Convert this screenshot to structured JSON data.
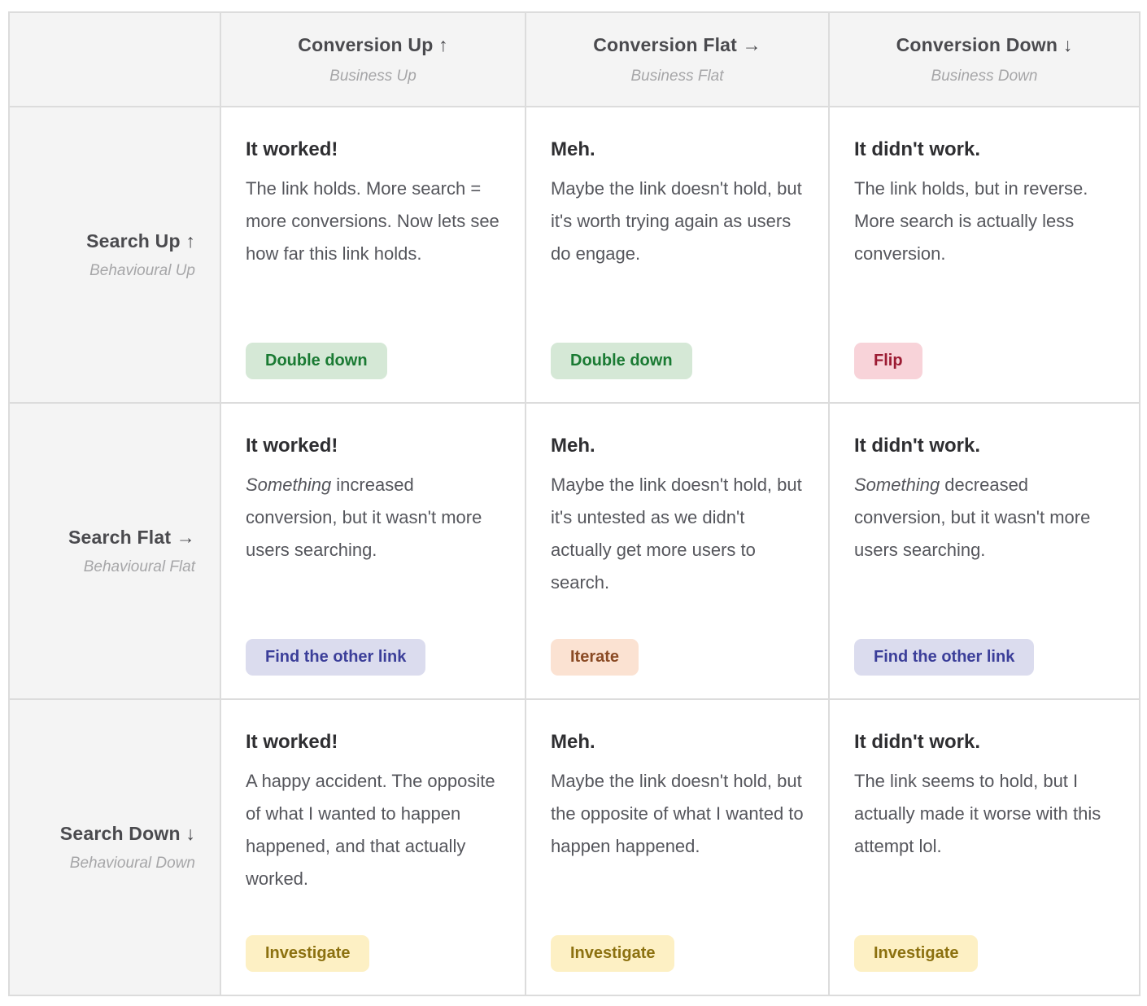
{
  "badge_colors": {
    "green": {
      "bg": "#d5e8d6",
      "text": "#1a7a33"
    },
    "red": {
      "bg": "#f8d3d9",
      "text": "#9c1b33"
    },
    "purple": {
      "bg": "#dbdcee",
      "text": "#3b3e99"
    },
    "orange": {
      "bg": "#fbe2d2",
      "text": "#8a4a24"
    },
    "yellow": {
      "bg": "#fdf0c4",
      "text": "#8c7110"
    }
  },
  "columns": [
    {
      "title": "Conversion Up ↑",
      "subtitle": "Business Up"
    },
    {
      "title": "Conversion Flat →",
      "subtitle": "Business Flat"
    },
    {
      "title": "Conversion Down ↓",
      "subtitle": "Business Down"
    }
  ],
  "rows": [
    {
      "header": {
        "title": "Search Up ↑",
        "subtitle": "Behavioural Up"
      },
      "cells": [
        {
          "title": "It worked!",
          "body_em": "",
          "body": "The link holds. More search = more conversions. Now lets see how far this link holds.",
          "badge": {
            "label": "Double down",
            "color": "green"
          }
        },
        {
          "title": "Meh.",
          "body_em": "",
          "body": "Maybe the link doesn't hold, but it's worth trying again as users do engage.",
          "badge": {
            "label": "Double down",
            "color": "green"
          }
        },
        {
          "title": "It didn't work.",
          "body_em": "",
          "body": "The link holds, but in reverse. More search is actually less conversion.",
          "badge": {
            "label": "Flip",
            "color": "red"
          }
        }
      ]
    },
    {
      "header": {
        "title": "Search Flat →",
        "subtitle": "Behavioural Flat"
      },
      "cells": [
        {
          "title": "It worked!",
          "body_em": "Something ",
          "body": "increased conversion, but it wasn't more users searching.",
          "badge": {
            "label": "Find the other link",
            "color": "purple"
          }
        },
        {
          "title": "Meh.",
          "body_em": "",
          "body": "Maybe the link doesn't hold, but it's untested as we didn't actually get more users to search.",
          "badge": {
            "label": "Iterate",
            "color": "orange"
          }
        },
        {
          "title": "It didn't work.",
          "body_em": "Something ",
          "body": "decreased conversion, but it wasn't more users searching.",
          "badge": {
            "label": "Find the other link",
            "color": "purple"
          }
        }
      ]
    },
    {
      "header": {
        "title": "Search Down ↓",
        "subtitle": "Behavioural Down"
      },
      "cells": [
        {
          "title": "It worked!",
          "body_em": "",
          "body": "A happy accident. The opposite of what I wanted to happen happened, and that actually worked.",
          "badge": {
            "label": "Investigate",
            "color": "yellow"
          }
        },
        {
          "title": "Meh.",
          "body_em": "",
          "body": "Maybe the link doesn't hold, but the opposite of what I wanted to happen happened.",
          "badge": {
            "label": "Investigate",
            "color": "yellow"
          }
        },
        {
          "title": "It didn't work.",
          "body_em": "",
          "body": "The link seems to hold, but I actually made it worse with this attempt lol.",
          "badge": {
            "label": "Investigate",
            "color": "yellow"
          }
        }
      ]
    }
  ]
}
